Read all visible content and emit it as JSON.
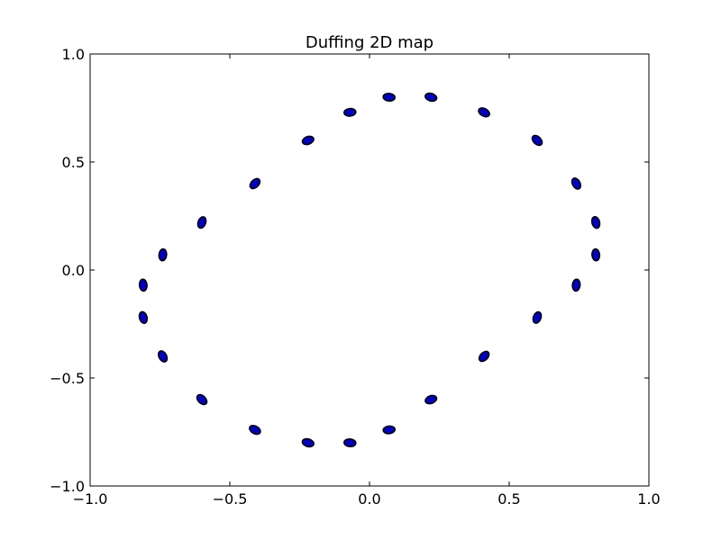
{
  "chart_data": {
    "type": "scatter",
    "title": "Duffing 2D map",
    "xlabel": "",
    "ylabel": "",
    "xlim": [
      -1.0,
      1.0
    ],
    "ylim": [
      -1.0,
      1.0
    ],
    "x_ticks": [
      -1.0,
      -0.5,
      0.0,
      0.5,
      1.0
    ],
    "y_ticks": [
      -1.0,
      -0.5,
      0.0,
      0.5,
      1.0
    ],
    "x_tick_labels": [
      "−1.0",
      "−0.5",
      "0.0",
      "0.5",
      "1.0"
    ],
    "y_tick_labels": [
      "−1.0",
      "−0.5",
      "0.0",
      "0.5",
      "1.0"
    ],
    "grid": false,
    "marker_color": "#0000cc",
    "marker_edge_color": "#000000",
    "series": [
      {
        "x": [
          0.07,
          0.22,
          0.41,
          0.6,
          0.74,
          0.81,
          0.81,
          0.74,
          0.6,
          0.41,
          0.22,
          0.07,
          -0.07,
          -0.22,
          -0.41,
          -0.6,
          -0.74,
          -0.81,
          -0.81,
          -0.74,
          -0.6,
          -0.41,
          -0.22,
          -0.07
        ],
        "y": [
          0.8,
          0.8,
          0.73,
          0.6,
          0.4,
          0.22,
          0.07,
          -0.07,
          -0.22,
          -0.4,
          -0.6,
          -0.74,
          -0.8,
          -0.8,
          -0.74,
          -0.6,
          -0.4,
          -0.22,
          -0.07,
          0.07,
          0.22,
          0.4,
          0.6,
          0.73
        ]
      }
    ]
  }
}
